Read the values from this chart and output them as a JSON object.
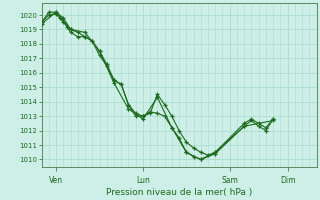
{
  "title": "Pression niveau de la mer( hPa )",
  "ylim": [
    1009.5,
    1020.8
  ],
  "yticks": [
    1010,
    1011,
    1012,
    1013,
    1014,
    1015,
    1016,
    1017,
    1018,
    1019,
    1020
  ],
  "background_color": "#ceeee8",
  "grid_color": "#aaddcc",
  "line_color": "#1a6b1a",
  "xlim": [
    0,
    228
  ],
  "x_ticks": [
    12,
    84,
    156,
    204
  ],
  "x_tick_labels": [
    "Ven",
    "Lun",
    "Sam",
    "Dim"
  ],
  "series1_x": [
    0,
    6,
    12,
    15,
    18,
    21,
    24,
    30,
    36,
    42,
    48,
    54,
    60,
    66,
    72,
    78,
    84,
    90,
    96,
    102,
    108,
    114,
    120,
    126,
    132,
    138,
    144,
    168,
    174,
    180,
    186,
    192
  ],
  "series1_y": [
    1019.5,
    1020.0,
    1020.1,
    1019.8,
    1019.5,
    1019.2,
    1018.8,
    1018.5,
    1018.5,
    1018.2,
    1017.2,
    1016.5,
    1015.5,
    1015.2,
    1013.8,
    1013.2,
    1013.0,
    1013.2,
    1014.5,
    1013.8,
    1013.0,
    1012.0,
    1011.2,
    1010.8,
    1010.5,
    1010.3,
    1010.5,
    1012.5,
    1012.8,
    1012.5,
    1012.2,
    1012.8
  ],
  "series2_x": [
    0,
    6,
    12,
    18,
    24,
    30,
    36,
    42,
    48,
    54,
    60,
    66,
    72,
    78,
    84,
    90,
    96,
    102,
    108,
    114,
    120,
    126,
    132,
    144,
    168,
    174,
    180,
    186,
    192
  ],
  "series2_y": [
    1019.5,
    1020.2,
    1020.2,
    1019.8,
    1019.0,
    1018.8,
    1018.5,
    1018.2,
    1017.5,
    1016.6,
    1015.5,
    1015.2,
    1013.8,
    1013.0,
    1013.0,
    1013.3,
    1013.2,
    1013.0,
    1012.2,
    1011.5,
    1010.5,
    1010.2,
    1010.0,
    1010.4,
    1012.3,
    1012.7,
    1012.3,
    1012.0,
    1012.8
  ],
  "series3_x": [
    0,
    12,
    24,
    36,
    48,
    60,
    72,
    84,
    96,
    108,
    120,
    132,
    144,
    168,
    192
  ],
  "series3_y": [
    1019.4,
    1020.2,
    1019.0,
    1018.8,
    1017.5,
    1015.3,
    1013.5,
    1012.8,
    1014.3,
    1012.2,
    1010.5,
    1010.0,
    1010.5,
    1012.3,
    1012.7
  ]
}
